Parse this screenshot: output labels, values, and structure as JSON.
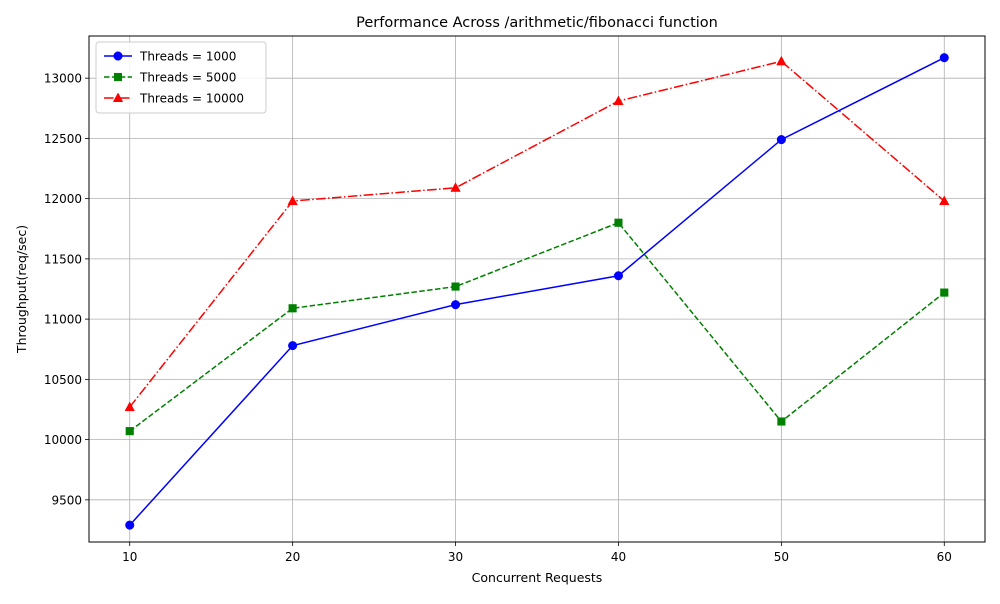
{
  "chart_data": {
    "type": "line",
    "title": "Performance Across /arithmetic/fibonacci function",
    "xlabel": "Concurrent Requests",
    "ylabel": "Throughput(req/sec)",
    "x": [
      10,
      20,
      30,
      40,
      50,
      60
    ],
    "xticks": [
      "10",
      "20",
      "30",
      "40",
      "50",
      "60"
    ],
    "yticks": [
      "9500",
      "10000",
      "10500",
      "11000",
      "11500",
      "12000",
      "12500",
      "13000"
    ],
    "xlim": [
      7.5,
      62.5
    ],
    "ylim": [
      9150,
      13350
    ],
    "grid": true,
    "legend_position": "top-left",
    "series": [
      {
        "name": "Threads = 1000",
        "values": [
          9290,
          10780,
          11120,
          11360,
          12490,
          13170
        ],
        "color": "#0000ff",
        "line_style": "solid",
        "marker": "circle"
      },
      {
        "name": "Threads = 5000",
        "values": [
          10070,
          11090,
          11270,
          11800,
          10150,
          11220
        ],
        "color": "#008000",
        "line_style": "dashed",
        "marker": "square"
      },
      {
        "name": "Threads = 10000",
        "values": [
          10270,
          11980,
          12090,
          12810,
          13140,
          11980
        ],
        "color": "#ff0000",
        "line_style": "dashdot",
        "marker": "triangle"
      }
    ]
  }
}
